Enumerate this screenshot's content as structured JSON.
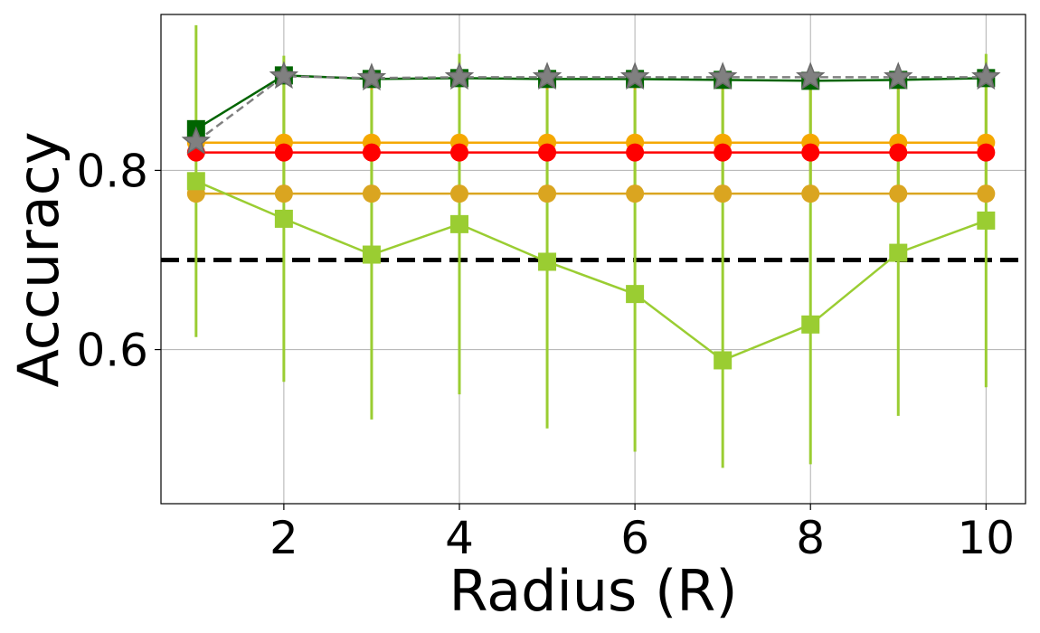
{
  "chart_data": {
    "type": "line",
    "title": "",
    "xlabel": "Radius (R)",
    "ylabel": "Accuracy",
    "xlim": [
      0.6,
      10.45
    ],
    "ylim": [
      0.428,
      0.974
    ],
    "xticks": [
      2,
      4,
      6,
      8,
      10
    ],
    "xtick_labels": [
      "2",
      "4",
      "6",
      "8",
      "10"
    ],
    "yticks": [
      0.6,
      0.8
    ],
    "ytick_labels": [
      "0.6",
      "0.8"
    ],
    "grid": true,
    "legend": "none",
    "x": [
      1,
      2,
      3,
      4,
      5,
      6,
      7,
      8,
      9,
      10
    ],
    "reference_line": {
      "y": 0.7,
      "color": "#000000",
      "style": "dashed"
    },
    "series": [
      {
        "color": "#f5a800",
        "marker": "circle",
        "line_style": "solid",
        "values": [
          0.831,
          0.831,
          0.831,
          0.831,
          0.831,
          0.831,
          0.831,
          0.831,
          0.831,
          0.831
        ]
      },
      {
        "color": "#ff0000",
        "marker": "circle",
        "line_style": "solid",
        "values": [
          0.82,
          0.82,
          0.82,
          0.82,
          0.82,
          0.82,
          0.82,
          0.82,
          0.82,
          0.82
        ]
      },
      {
        "color": "#daa520",
        "marker": "circle",
        "line_style": "solid",
        "values": [
          0.774,
          0.774,
          0.774,
          0.774,
          0.774,
          0.774,
          0.774,
          0.774,
          0.774,
          0.774
        ],
        "err_low": [
          0.774,
          0.774,
          0.774,
          0.774,
          0.774,
          0.774,
          0.774,
          0.774,
          0.774,
          0.774
        ],
        "err_high": [
          0.774,
          0.9,
          0.9,
          0.9,
          0.9,
          0.9,
          0.9,
          0.9,
          0.9,
          0.9
        ]
      },
      {
        "color": "#9acd32",
        "marker": "square",
        "line_style": "solid",
        "values": [
          0.788,
          0.746,
          0.706,
          0.74,
          0.698,
          0.662,
          0.588,
          0.628,
          0.708,
          0.744
        ],
        "err_low": [
          0.614,
          0.564,
          0.522,
          0.55,
          0.512,
          0.486,
          0.468,
          0.472,
          0.526,
          0.558
        ],
        "err_high": [
          0.962,
          0.928,
          0.89,
          0.93,
          0.89,
          0.89,
          0.89,
          0.89,
          0.89,
          0.93
        ]
      },
      {
        "color": "#006400",
        "marker": "square",
        "line_style": "solid",
        "values": [
          0.846,
          0.906,
          0.902,
          0.903,
          0.902,
          0.902,
          0.901,
          0.9,
          0.901,
          0.903
        ]
      },
      {
        "color": "#808080",
        "marker": "star",
        "line_style": "dashed",
        "values": [
          0.832,
          0.905,
          0.903,
          0.904,
          0.904,
          0.904,
          0.904,
          0.904,
          0.904,
          0.904
        ]
      }
    ]
  }
}
